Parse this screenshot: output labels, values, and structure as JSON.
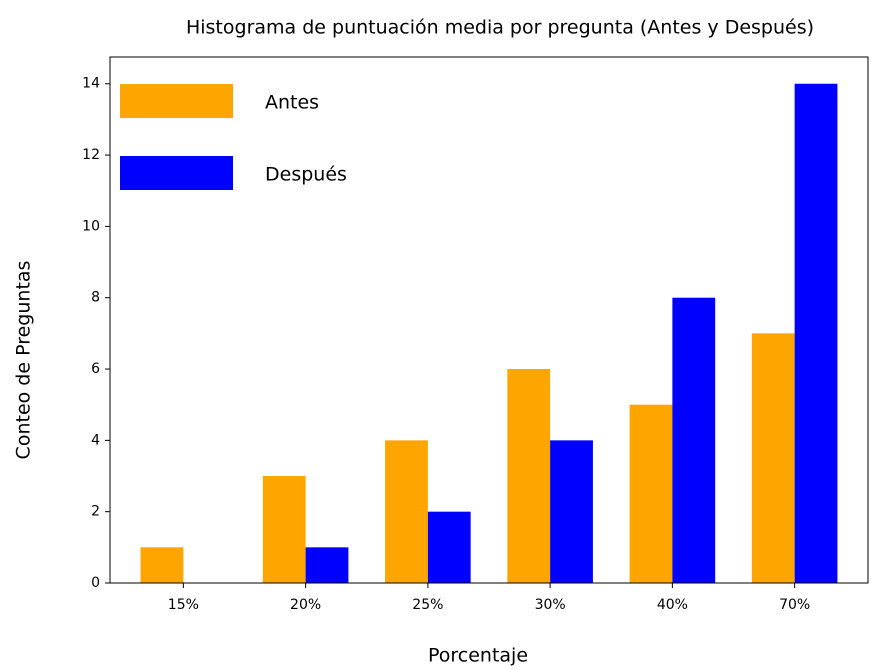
{
  "chart_data": {
    "type": "bar",
    "title": "Histograma de puntuación media por pregunta (Antes y Después)",
    "xlabel": "Porcentaje",
    "ylabel": "Conteo de Preguntas",
    "categories": [
      "15%",
      "20%",
      "25%",
      "30%",
      "40%",
      "70%"
    ],
    "series": [
      {
        "name": "Antes",
        "color": "#ffa500",
        "values": [
          1,
          3,
          4,
          6,
          5,
          7
        ]
      },
      {
        "name": "Después",
        "color": "#0000ff",
        "values": [
          0,
          1,
          2,
          4,
          8,
          14
        ]
      }
    ],
    "ylim": [
      0,
      14.75
    ],
    "yticks": [
      0,
      2,
      4,
      6,
      8,
      10,
      12,
      14
    ],
    "legend": "upper left"
  }
}
